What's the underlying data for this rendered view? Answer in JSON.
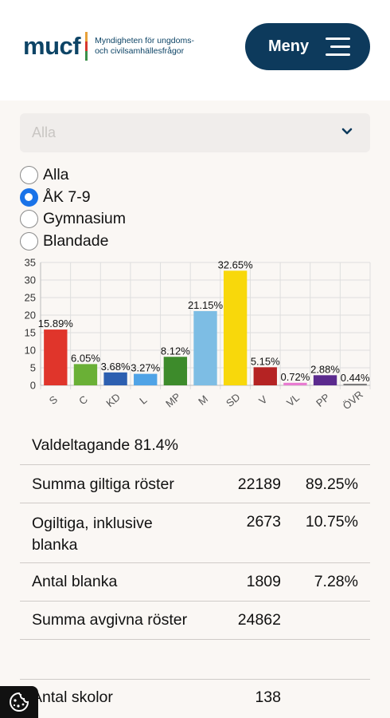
{
  "header": {
    "logo_word": "mucf",
    "logo_subtitle_line1": "Myndigheten för ungdoms-",
    "logo_subtitle_line2": "och civilsamhällesfrågor",
    "menu_label": "Meny",
    "colors": {
      "brand": "#0d3a5c",
      "logo_text": "#0d4466"
    }
  },
  "filter": {
    "selected": "Alla",
    "chevron_icon": "chevron-down-icon"
  },
  "school_level": {
    "options": [
      {
        "label": "Alla",
        "checked": false
      },
      {
        "label": "ÅK 7-9",
        "checked": true
      },
      {
        "label": "Gymnasium",
        "checked": false
      },
      {
        "label": "Blandade",
        "checked": false
      }
    ],
    "accent": "#1a73e8"
  },
  "chart_data": {
    "type": "bar",
    "categories": [
      "S",
      "C",
      "KD",
      "L",
      "MP",
      "M",
      "SD",
      "V",
      "VL",
      "PP",
      "ÖVR"
    ],
    "values": [
      15.89,
      6.05,
      3.68,
      3.27,
      8.12,
      21.15,
      32.65,
      5.15,
      0.72,
      2.88,
      0.44
    ],
    "data_labels": [
      "15.89%",
      "6.05%",
      "3.68%",
      "3.27%",
      "8.12%",
      "21.15%",
      "32.65%",
      "5.15%",
      "0.72%",
      "2.88%",
      "0.44%"
    ],
    "colors": [
      "#e0352b",
      "#6ab036",
      "#2d5fb0",
      "#4fa3e6",
      "#3d8b2b",
      "#7dbde4",
      "#f8d80b",
      "#b52323",
      "#e87bd0",
      "#5b2a8e",
      "#777777"
    ],
    "yticks": [
      0,
      5,
      10,
      15,
      20,
      25,
      30,
      35
    ],
    "ylim": [
      0,
      35
    ],
    "grid": true,
    "title": "",
    "xlabel": "",
    "ylabel": ""
  },
  "stats": {
    "turnout": "Valdeltagande 81.4%",
    "rows": [
      {
        "label": "Summa giltiga röster",
        "count": "22189",
        "percent": "89.25%"
      },
      {
        "label": "Ogiltiga, inklusive blanka",
        "count": "2673",
        "percent": "10.75%"
      },
      {
        "label": "Antal blanka",
        "count": "1809",
        "percent": "7.28%"
      },
      {
        "label": "Summa avgivna röster",
        "count": "24862",
        "percent": ""
      }
    ],
    "schools_label": "Antal skolor",
    "schools_count": "138"
  },
  "cookie": {
    "icon": "cookie-icon"
  }
}
